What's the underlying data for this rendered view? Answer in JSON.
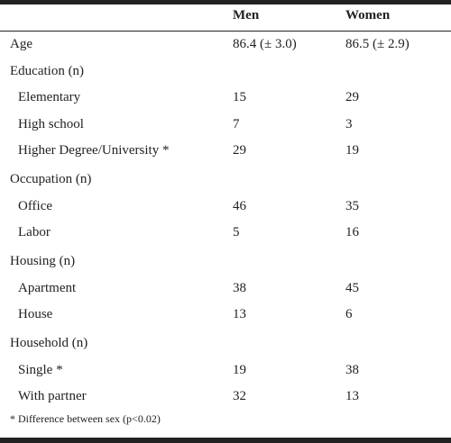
{
  "table": {
    "header": [
      "Men",
      "Women"
    ],
    "sections": [
      {
        "label": "Age",
        "men": "86.4 (± 3.0)",
        "women": "86.5 (± 2.9)"
      },
      {
        "label": "Education (n)",
        "rows": [
          {
            "label": "Elementary",
            "men": 15,
            "women": 29
          },
          {
            "label": "High school",
            "men": 7,
            "women": 3
          },
          {
            "label": "Higher Degree/University *",
            "men": 29,
            "women": 19
          }
        ]
      },
      {
        "label": "Occupation (n)",
        "rows": [
          {
            "label": "Office",
            "men": 46,
            "women": 35
          },
          {
            "label": "Labor",
            "men": 5,
            "women": 16
          }
        ]
      },
      {
        "label": "Housing (n)",
        "rows": [
          {
            "label": "Apartment",
            "men": 38,
            "women": 45
          },
          {
            "label": "House",
            "men": 13,
            "women": 6
          }
        ]
      },
      {
        "label": "Household (n)",
        "rows": [
          {
            "label": "Single *",
            "men": 19,
            "women": 38
          },
          {
            "label": "With partner",
            "men": 32,
            "women": 13
          }
        ]
      }
    ],
    "footnote": "* Difference between sex (p<0.02)"
  }
}
